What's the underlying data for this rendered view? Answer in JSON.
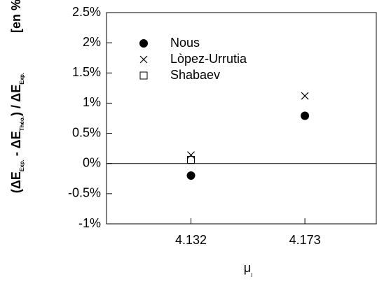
{
  "chart_data": {
    "type": "scatter",
    "ylabel": [
      "(ΔE",
      "Exp.",
      " - ΔE",
      "Théo.",
      ") / ΔE",
      "Exp."
    ],
    "ylabel_unit": "[en %]",
    "xlabel": [
      "μ",
      "I"
    ],
    "series": [
      {
        "name": "Nous",
        "color": "#000000",
        "marker": "circle",
        "x": [
          4.132,
          4.173
        ],
        "values": [
          -0.2,
          0.79
        ]
      },
      {
        "name": "Lòpez-Urrutia",
        "color": "#000000",
        "marker": "x",
        "x": [
          4.132,
          4.173
        ],
        "values": [
          0.14,
          1.12
        ]
      },
      {
        "name": "Shabaev",
        "color": "#000000",
        "marker": "square",
        "x": [
          4.132
        ],
        "values": [
          0.06
        ]
      }
    ],
    "xlim": [
      4.1016,
      4.1987
    ],
    "xticks": [
      4.132,
      4.173
    ],
    "ylim": [
      -1,
      2.5
    ],
    "yticks": [
      {
        "value": -1,
        "label": "-1%"
      },
      {
        "value": -0.5,
        "label": "-0.5%"
      },
      {
        "value": 0,
        "label": "0%"
      },
      {
        "value": 0.5,
        "label": "0.5%"
      },
      {
        "value": 1,
        "label": "1%"
      },
      {
        "value": 1.5,
        "label": "1.5%"
      },
      {
        "value": 2,
        "label": "2%"
      },
      {
        "value": 2.5,
        "label": "2.5%"
      }
    ],
    "legend": "upper left"
  }
}
